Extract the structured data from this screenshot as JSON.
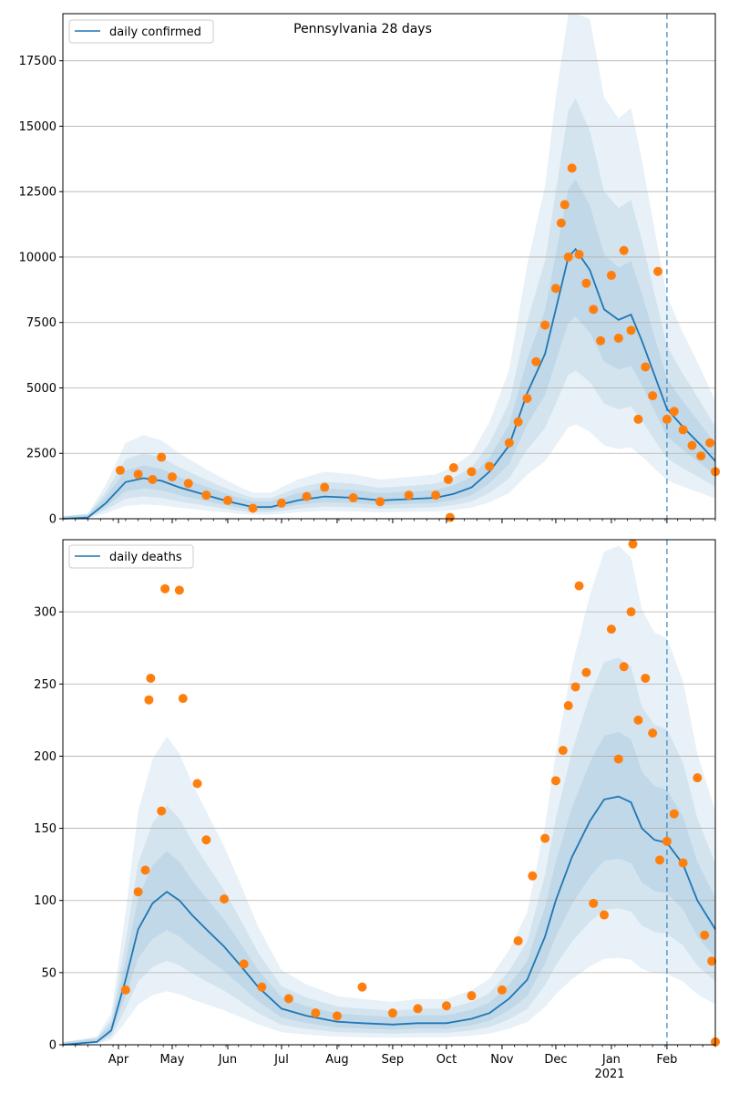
{
  "figure": {
    "title": "Pennsylvania 28 days"
  },
  "colors": {
    "line": "#1f77b4",
    "dots": "#ff7f0e",
    "band": "#1f77b4",
    "grid": "#b0b0b0",
    "vline": "#1f77b4"
  },
  "chart_data": [
    {
      "type": "line",
      "title": "Pennsylvania 28 days",
      "xlabel": "",
      "ylabel": "",
      "legend": {
        "label": "daily confirmed",
        "placement": "top-left"
      },
      "x_range": [
        "2020-03-01",
        "2021-02-28"
      ],
      "ylim": [
        0,
        19300
      ],
      "yticks": [
        0,
        2500,
        5000,
        7500,
        10000,
        12500,
        15000,
        17500
      ],
      "grid": "horizontal",
      "forecast_start": "2021-02-01",
      "line_points": [
        [
          "2020-03-01",
          0
        ],
        [
          "2020-03-15",
          50
        ],
        [
          "2020-03-25",
          600
        ],
        [
          "2020-04-05",
          1400
        ],
        [
          "2020-04-15",
          1550
        ],
        [
          "2020-04-25",
          1450
        ],
        [
          "2020-05-05",
          1200
        ],
        [
          "2020-05-15",
          1000
        ],
        [
          "2020-05-25",
          800
        ],
        [
          "2020-06-05",
          600
        ],
        [
          "2020-06-15",
          450
        ],
        [
          "2020-06-25",
          450
        ],
        [
          "2020-07-10",
          700
        ],
        [
          "2020-07-25",
          850
        ],
        [
          "2020-08-10",
          800
        ],
        [
          "2020-08-25",
          700
        ],
        [
          "2020-09-10",
          750
        ],
        [
          "2020-09-25",
          800
        ],
        [
          "2020-10-05",
          950
        ],
        [
          "2020-10-15",
          1200
        ],
        [
          "2020-10-25",
          1800
        ],
        [
          "2020-11-05",
          2800
        ],
        [
          "2020-11-15",
          4800
        ],
        [
          "2020-11-25",
          6300
        ],
        [
          "2020-12-01",
          8000
        ],
        [
          "2020-12-08",
          10000
        ],
        [
          "2020-12-12",
          10300
        ],
        [
          "2020-12-20",
          9500
        ],
        [
          "2020-12-28",
          8000
        ],
        [
          "2021-01-05",
          7600
        ],
        [
          "2021-01-12",
          7800
        ],
        [
          "2021-01-18",
          6800
        ],
        [
          "2021-01-25",
          5500
        ],
        [
          "2021-02-01",
          4200
        ],
        [
          "2021-02-10",
          3500
        ],
        [
          "2021-02-20",
          2800
        ],
        [
          "2021-02-28",
          2200
        ]
      ],
      "dots": [
        [
          "2020-04-02",
          1850
        ],
        [
          "2020-04-12",
          1700
        ],
        [
          "2020-04-20",
          1500
        ],
        [
          "2020-04-25",
          2350
        ],
        [
          "2020-05-01",
          1600
        ],
        [
          "2020-05-10",
          1350
        ],
        [
          "2020-05-20",
          900
        ],
        [
          "2020-06-01",
          700
        ],
        [
          "2020-06-15",
          400
        ],
        [
          "2020-07-01",
          600
        ],
        [
          "2020-07-15",
          850
        ],
        [
          "2020-07-25",
          1200
        ],
        [
          "2020-08-10",
          800
        ],
        [
          "2020-08-25",
          650
        ],
        [
          "2020-09-10",
          900
        ],
        [
          "2020-09-25",
          900
        ],
        [
          "2020-10-02",
          1500
        ],
        [
          "2020-10-03",
          50
        ],
        [
          "2020-10-05",
          1950
        ],
        [
          "2020-10-15",
          1800
        ],
        [
          "2020-10-25",
          2000
        ],
        [
          "2020-11-05",
          2900
        ],
        [
          "2020-11-10",
          3700
        ],
        [
          "2020-11-15",
          4600
        ],
        [
          "2020-11-20",
          6000
        ],
        [
          "2020-11-25",
          7400
        ],
        [
          "2020-12-01",
          8800
        ],
        [
          "2020-12-04",
          11300
        ],
        [
          "2020-12-06",
          12000
        ],
        [
          "2020-12-08",
          10000
        ],
        [
          "2020-12-10",
          13400
        ],
        [
          "2020-12-14",
          10100
        ],
        [
          "2020-12-18",
          9000
        ],
        [
          "2020-12-22",
          8000
        ],
        [
          "2020-12-26",
          6800
        ],
        [
          "2021-01-01",
          9300
        ],
        [
          "2021-01-05",
          6900
        ],
        [
          "2021-01-08",
          10250
        ],
        [
          "2021-01-12",
          7200
        ],
        [
          "2021-01-16",
          3800
        ],
        [
          "2021-01-20",
          5800
        ],
        [
          "2021-01-24",
          4700
        ],
        [
          "2021-01-27",
          9450
        ],
        [
          "2021-02-01",
          3800
        ],
        [
          "2021-02-05",
          4100
        ],
        [
          "2021-02-10",
          3400
        ],
        [
          "2021-02-15",
          2800
        ],
        [
          "2021-02-20",
          2400
        ],
        [
          "2021-02-25",
          2900
        ],
        [
          "2021-02-28",
          1800
        ]
      ]
    },
    {
      "type": "line",
      "title": "",
      "xlabel": "",
      "ylabel": "",
      "legend": {
        "label": "daily deaths",
        "placement": "top-left"
      },
      "x_range": [
        "2020-03-01",
        "2021-02-28"
      ],
      "ylim": [
        0,
        350
      ],
      "yticks": [
        0,
        50,
        100,
        150,
        200,
        250,
        300
      ],
      "grid": "horizontal",
      "forecast_start": "2021-02-01",
      "x_ticks": [
        "Apr",
        "May",
        "Jun",
        "Jul",
        "Aug",
        "Sep",
        "Oct",
        "Nov",
        "Dec",
        "Jan",
        "Feb"
      ],
      "x_tick_dates": [
        "2020-04-01",
        "2020-05-01",
        "2020-06-01",
        "2020-07-01",
        "2020-08-01",
        "2020-09-01",
        "2020-10-01",
        "2020-11-01",
        "2020-12-01",
        "2021-01-01",
        "2021-02-01"
      ],
      "x_year_label": "2021",
      "line_points": [
        [
          "2020-03-01",
          0
        ],
        [
          "2020-03-20",
          2
        ],
        [
          "2020-03-28",
          10
        ],
        [
          "2020-04-05",
          45
        ],
        [
          "2020-04-12",
          80
        ],
        [
          "2020-04-20",
          98
        ],
        [
          "2020-04-28",
          106
        ],
        [
          "2020-05-05",
          100
        ],
        [
          "2020-05-12",
          90
        ],
        [
          "2020-05-20",
          80
        ],
        [
          "2020-05-30",
          68
        ],
        [
          "2020-06-08",
          55
        ],
        [
          "2020-06-18",
          40
        ],
        [
          "2020-07-01",
          25
        ],
        [
          "2020-07-15",
          20
        ],
        [
          "2020-08-01",
          16
        ],
        [
          "2020-08-15",
          15
        ],
        [
          "2020-09-01",
          14
        ],
        [
          "2020-09-15",
          15
        ],
        [
          "2020-10-01",
          15
        ],
        [
          "2020-10-15",
          18
        ],
        [
          "2020-10-25",
          22
        ],
        [
          "2020-11-05",
          32
        ],
        [
          "2020-11-15",
          45
        ],
        [
          "2020-11-25",
          75
        ],
        [
          "2020-12-01",
          100
        ],
        [
          "2020-12-10",
          130
        ],
        [
          "2020-12-20",
          155
        ],
        [
          "2020-12-28",
          170
        ],
        [
          "2021-01-05",
          172
        ],
        [
          "2021-01-12",
          168
        ],
        [
          "2021-01-18",
          150
        ],
        [
          "2021-01-25",
          142
        ],
        [
          "2021-02-01",
          140
        ],
        [
          "2021-02-10",
          125
        ],
        [
          "2021-02-18",
          100
        ],
        [
          "2021-02-28",
          80
        ]
      ],
      "dots": [
        [
          "2020-04-05",
          38
        ],
        [
          "2020-04-12",
          106
        ],
        [
          "2020-04-16",
          121
        ],
        [
          "2020-04-18",
          239
        ],
        [
          "2020-04-19",
          254
        ],
        [
          "2020-04-25",
          162
        ],
        [
          "2020-04-27",
          316
        ],
        [
          "2020-05-05",
          315
        ],
        [
          "2020-05-07",
          240
        ],
        [
          "2020-05-15",
          181
        ],
        [
          "2020-05-20",
          142
        ],
        [
          "2020-05-30",
          101
        ],
        [
          "2020-06-10",
          56
        ],
        [
          "2020-06-20",
          40
        ],
        [
          "2020-07-05",
          32
        ],
        [
          "2020-07-20",
          22
        ],
        [
          "2020-08-01",
          20
        ],
        [
          "2020-08-15",
          40
        ],
        [
          "2020-09-01",
          22
        ],
        [
          "2020-09-15",
          25
        ],
        [
          "2020-10-01",
          27
        ],
        [
          "2020-10-15",
          34
        ],
        [
          "2020-11-01",
          38
        ],
        [
          "2020-11-10",
          72
        ],
        [
          "2020-11-18",
          117
        ],
        [
          "2020-11-25",
          143
        ],
        [
          "2020-12-01",
          183
        ],
        [
          "2020-12-05",
          204
        ],
        [
          "2020-12-08",
          235
        ],
        [
          "2020-12-12",
          248
        ],
        [
          "2020-12-14",
          318
        ],
        [
          "2020-12-18",
          258
        ],
        [
          "2020-12-22",
          98
        ],
        [
          "2020-12-28",
          90
        ],
        [
          "2021-01-01",
          288
        ],
        [
          "2021-01-05",
          198
        ],
        [
          "2021-01-08",
          262
        ],
        [
          "2021-01-12",
          300
        ],
        [
          "2021-01-13",
          347
        ],
        [
          "2021-01-16",
          225
        ],
        [
          "2021-01-20",
          254
        ],
        [
          "2021-01-24",
          216
        ],
        [
          "2021-01-28",
          128
        ],
        [
          "2021-02-01",
          141
        ],
        [
          "2021-02-05",
          160
        ],
        [
          "2021-02-10",
          126
        ],
        [
          "2021-02-18",
          185
        ],
        [
          "2021-02-22",
          76
        ],
        [
          "2021-02-26",
          58
        ],
        [
          "2021-02-28",
          2
        ]
      ]
    }
  ]
}
